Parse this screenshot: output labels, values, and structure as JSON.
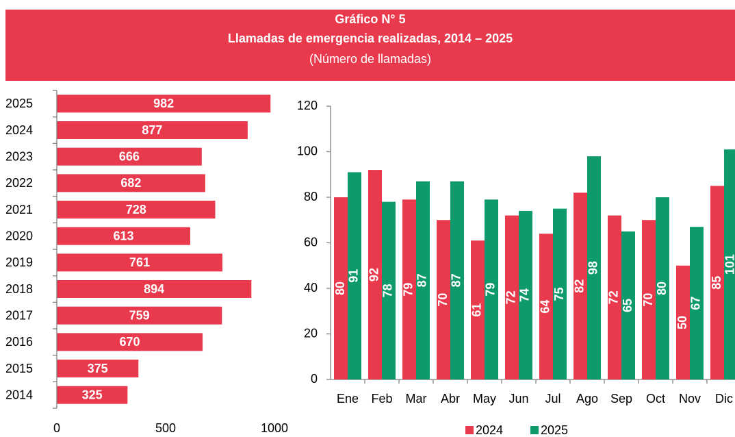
{
  "header": {
    "title": "Gráfico N° 5",
    "subtitle": "Llamadas de emergencia realizadas, 2014 – 2025",
    "note": "(Número de llamadas)",
    "color": "#e8394d"
  },
  "chart_data": [
    {
      "type": "bar",
      "orientation": "horizontal",
      "color": "#e8394d",
      "categories": [
        "2025",
        "2024",
        "2023",
        "2022",
        "2021",
        "2020",
        "2019",
        "2018",
        "2017",
        "2016",
        "2015",
        "2014"
      ],
      "values": [
        982,
        877,
        666,
        682,
        728,
        613,
        761,
        894,
        759,
        670,
        375,
        325
      ],
      "xlim": [
        0,
        1000
      ],
      "xticks": [
        0,
        500,
        1000
      ]
    },
    {
      "type": "bar",
      "orientation": "vertical",
      "categories": [
        "Ene",
        "Feb",
        "Mar",
        "Abr",
        "May",
        "Jun",
        "Jul",
        "Ago",
        "Sep",
        "Oct",
        "Nov",
        "Dic"
      ],
      "series": [
        {
          "name": "2024",
          "color": "#e8394d",
          "values": [
            80,
            92,
            79,
            70,
            61,
            72,
            64,
            82,
            72,
            70,
            50,
            85
          ]
        },
        {
          "name": "2025",
          "color": "#0f9a6e",
          "values": [
            91,
            78,
            87,
            87,
            79,
            74,
            75,
            98,
            65,
            80,
            67,
            101
          ]
        }
      ],
      "ylim": [
        0,
        120
      ],
      "yticks": [
        0,
        20,
        40,
        60,
        80,
        100,
        120
      ],
      "legend": "bottom"
    }
  ]
}
